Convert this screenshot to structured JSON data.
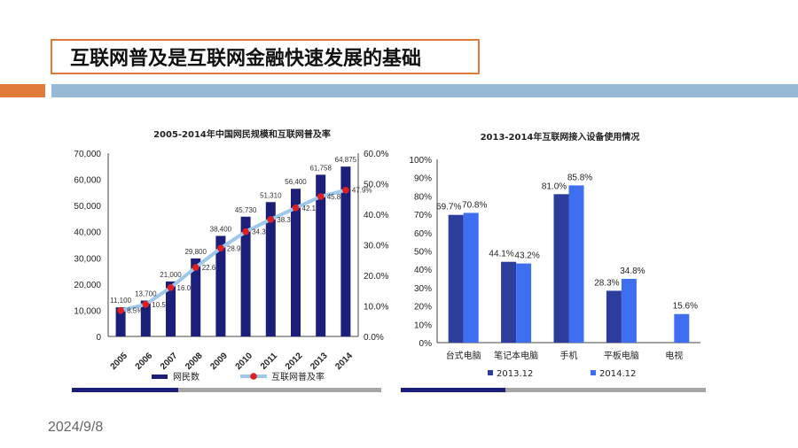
{
  "slide": {
    "title": "互联网普及是互联网金融快速发展的基础",
    "date": "2024/9/8"
  },
  "colors": {
    "accent_orange": "#e07b39",
    "accent_blue": "#98b9d6",
    "bar_navy": "#1c1f7a",
    "rate_line": "#9dc8ec",
    "rate_marker": "#e02020",
    "series_2013": "#2c3d9c",
    "series_2014": "#3d6ff0"
  },
  "chart_data": [
    {
      "type": "bar",
      "title": "2005-2014年中国网民规模和互联网普及率",
      "categories": [
        "2005",
        "2006",
        "2007",
        "2008",
        "2009",
        "2010",
        "2011",
        "2012",
        "2013",
        "2014"
      ],
      "series": [
        {
          "name": "网民数",
          "type": "bar",
          "axis": "left",
          "values": [
            11100,
            13700,
            21000,
            29800,
            38400,
            45730,
            51310,
            56400,
            61758,
            64875
          ],
          "labels": [
            "11,100",
            "13,700",
            "21,000",
            "29,800",
            "38,400",
            "45,730",
            "51,310",
            "56,400",
            "61,758",
            "64,875"
          ]
        },
        {
          "name": "互联网普及率",
          "type": "line",
          "axis": "right",
          "values": [
            8.5,
            10.5,
            16.0,
            22.6,
            28.9,
            34.3,
            38.3,
            42.1,
            45.8,
            47.9
          ],
          "labels": [
            "8.5%",
            "10.5",
            "16.0",
            "22.6",
            "28.9",
            "34.3",
            "38.3",
            "42.1",
            "45.8",
            "47.9%"
          ]
        }
      ],
      "ylim": [
        0,
        70000
      ],
      "yticks": [
        "0",
        "10,000",
        "20,000",
        "30,000",
        "40,000",
        "50,000",
        "60,000",
        "70,000"
      ],
      "y2lim": [
        0,
        60
      ],
      "y2ticks": [
        "0.0%",
        "10.0%",
        "20.0%",
        "30.0%",
        "40.0%",
        "50.0%",
        "60.0%"
      ],
      "legend": "bottom"
    },
    {
      "type": "bar",
      "title": "2013-2014年互联网接入设备使用情况",
      "categories": [
        "台式电脑",
        "笔记本电脑",
        "手机",
        "平板电脑",
        "电视"
      ],
      "series": [
        {
          "name": "2013.12",
          "values": [
            69.7,
            44.1,
            81.0,
            28.3,
            null
          ],
          "labels": [
            "69.7%",
            "44.1%",
            "81.0%",
            "28.3%",
            ""
          ]
        },
        {
          "name": "2014.12",
          "values": [
            70.8,
            43.2,
            85.8,
            34.8,
            15.6
          ],
          "labels": [
            "70.8%",
            "43.2%",
            "85.8%",
            "34.8%",
            "15.6%"
          ]
        }
      ],
      "ylim": [
        0,
        100
      ],
      "yticks": [
        "0%",
        "10%",
        "20%",
        "30%",
        "40%",
        "50%",
        "60%",
        "70%",
        "80%",
        "90%",
        "100%"
      ],
      "legend": "bottom"
    }
  ]
}
